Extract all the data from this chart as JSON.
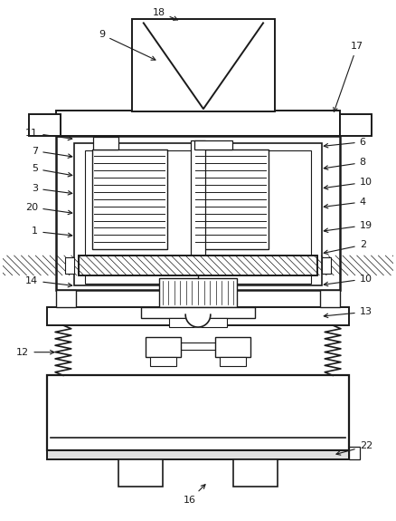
{
  "bg_color": "#ffffff",
  "line_color": "#1a1a1a",
  "lw": 1.2,
  "fig_w": 4.38,
  "fig_h": 5.75
}
